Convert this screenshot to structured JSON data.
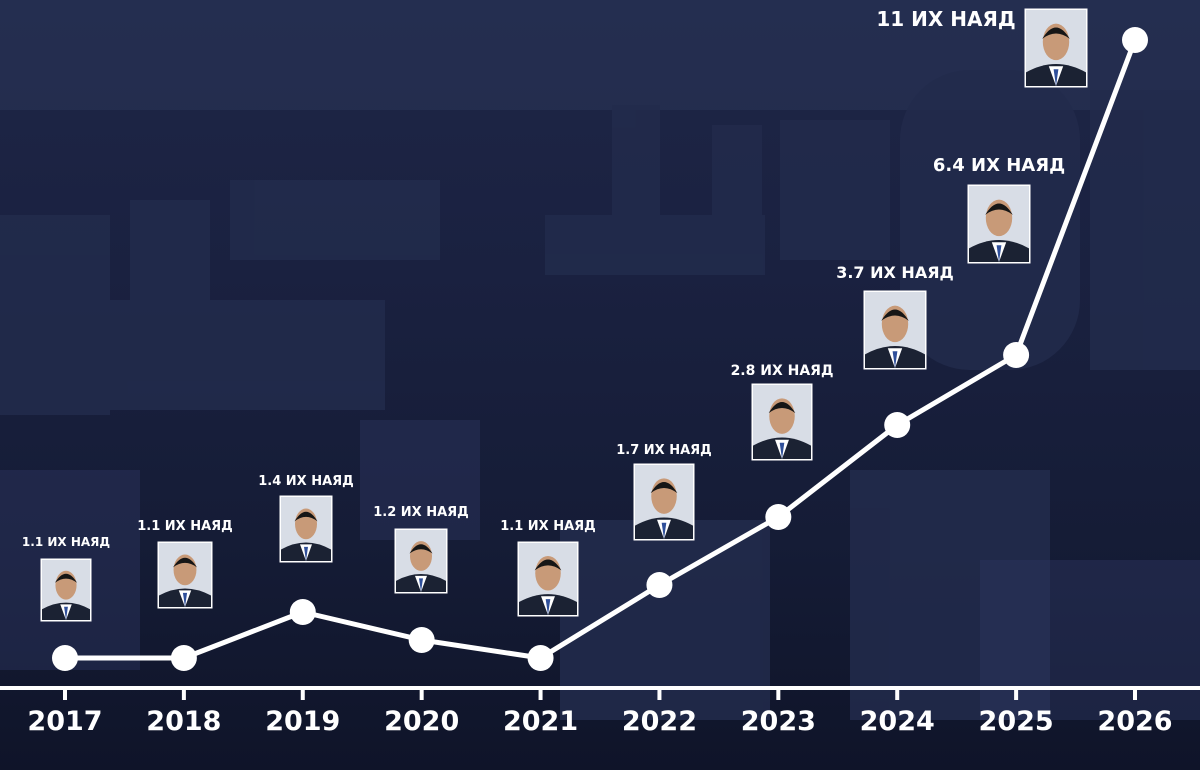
{
  "chart_data": {
    "type": "line",
    "title": "",
    "xlabel": "",
    "ylabel": "",
    "x": [
      "2017",
      "2018",
      "2019",
      "2020",
      "2021",
      "2022",
      "2023",
      "2024",
      "2025",
      "2026"
    ],
    "value_labels": [
      "1.1 ИХ НАЯД",
      "1.1 ИХ НАЯД",
      "1.4 ИХ НАЯД",
      "1.2 ИХ НАЯД",
      "1.1 ИХ НАЯД",
      "1.7 ИХ НАЯД",
      "2.8 ИХ НАЯД",
      "3.7 ИХ НАЯД",
      "6.4 ИХ НАЯД",
      "11 ИХ НАЯД"
    ],
    "series": [
      {
        "values": [
          1.1,
          1.1,
          1.4,
          1.2,
          1.1,
          1.7,
          2.8,
          3.7,
          6.4,
          11
        ]
      }
    ],
    "ylim": [
      1.1,
      11
    ],
    "grid": false,
    "legend": "none"
  },
  "colors": {
    "line": "#ffffff",
    "marker": "#ffffff",
    "axis": "#ffffff",
    "text": "#ffffff",
    "background": "#1a2140",
    "portrait_bg": "#d8dde6",
    "suit": "#1b2233",
    "skin": "#c89a78",
    "hair": "#161616"
  },
  "icons": {
    "portrait": "official-portrait-icon"
  }
}
